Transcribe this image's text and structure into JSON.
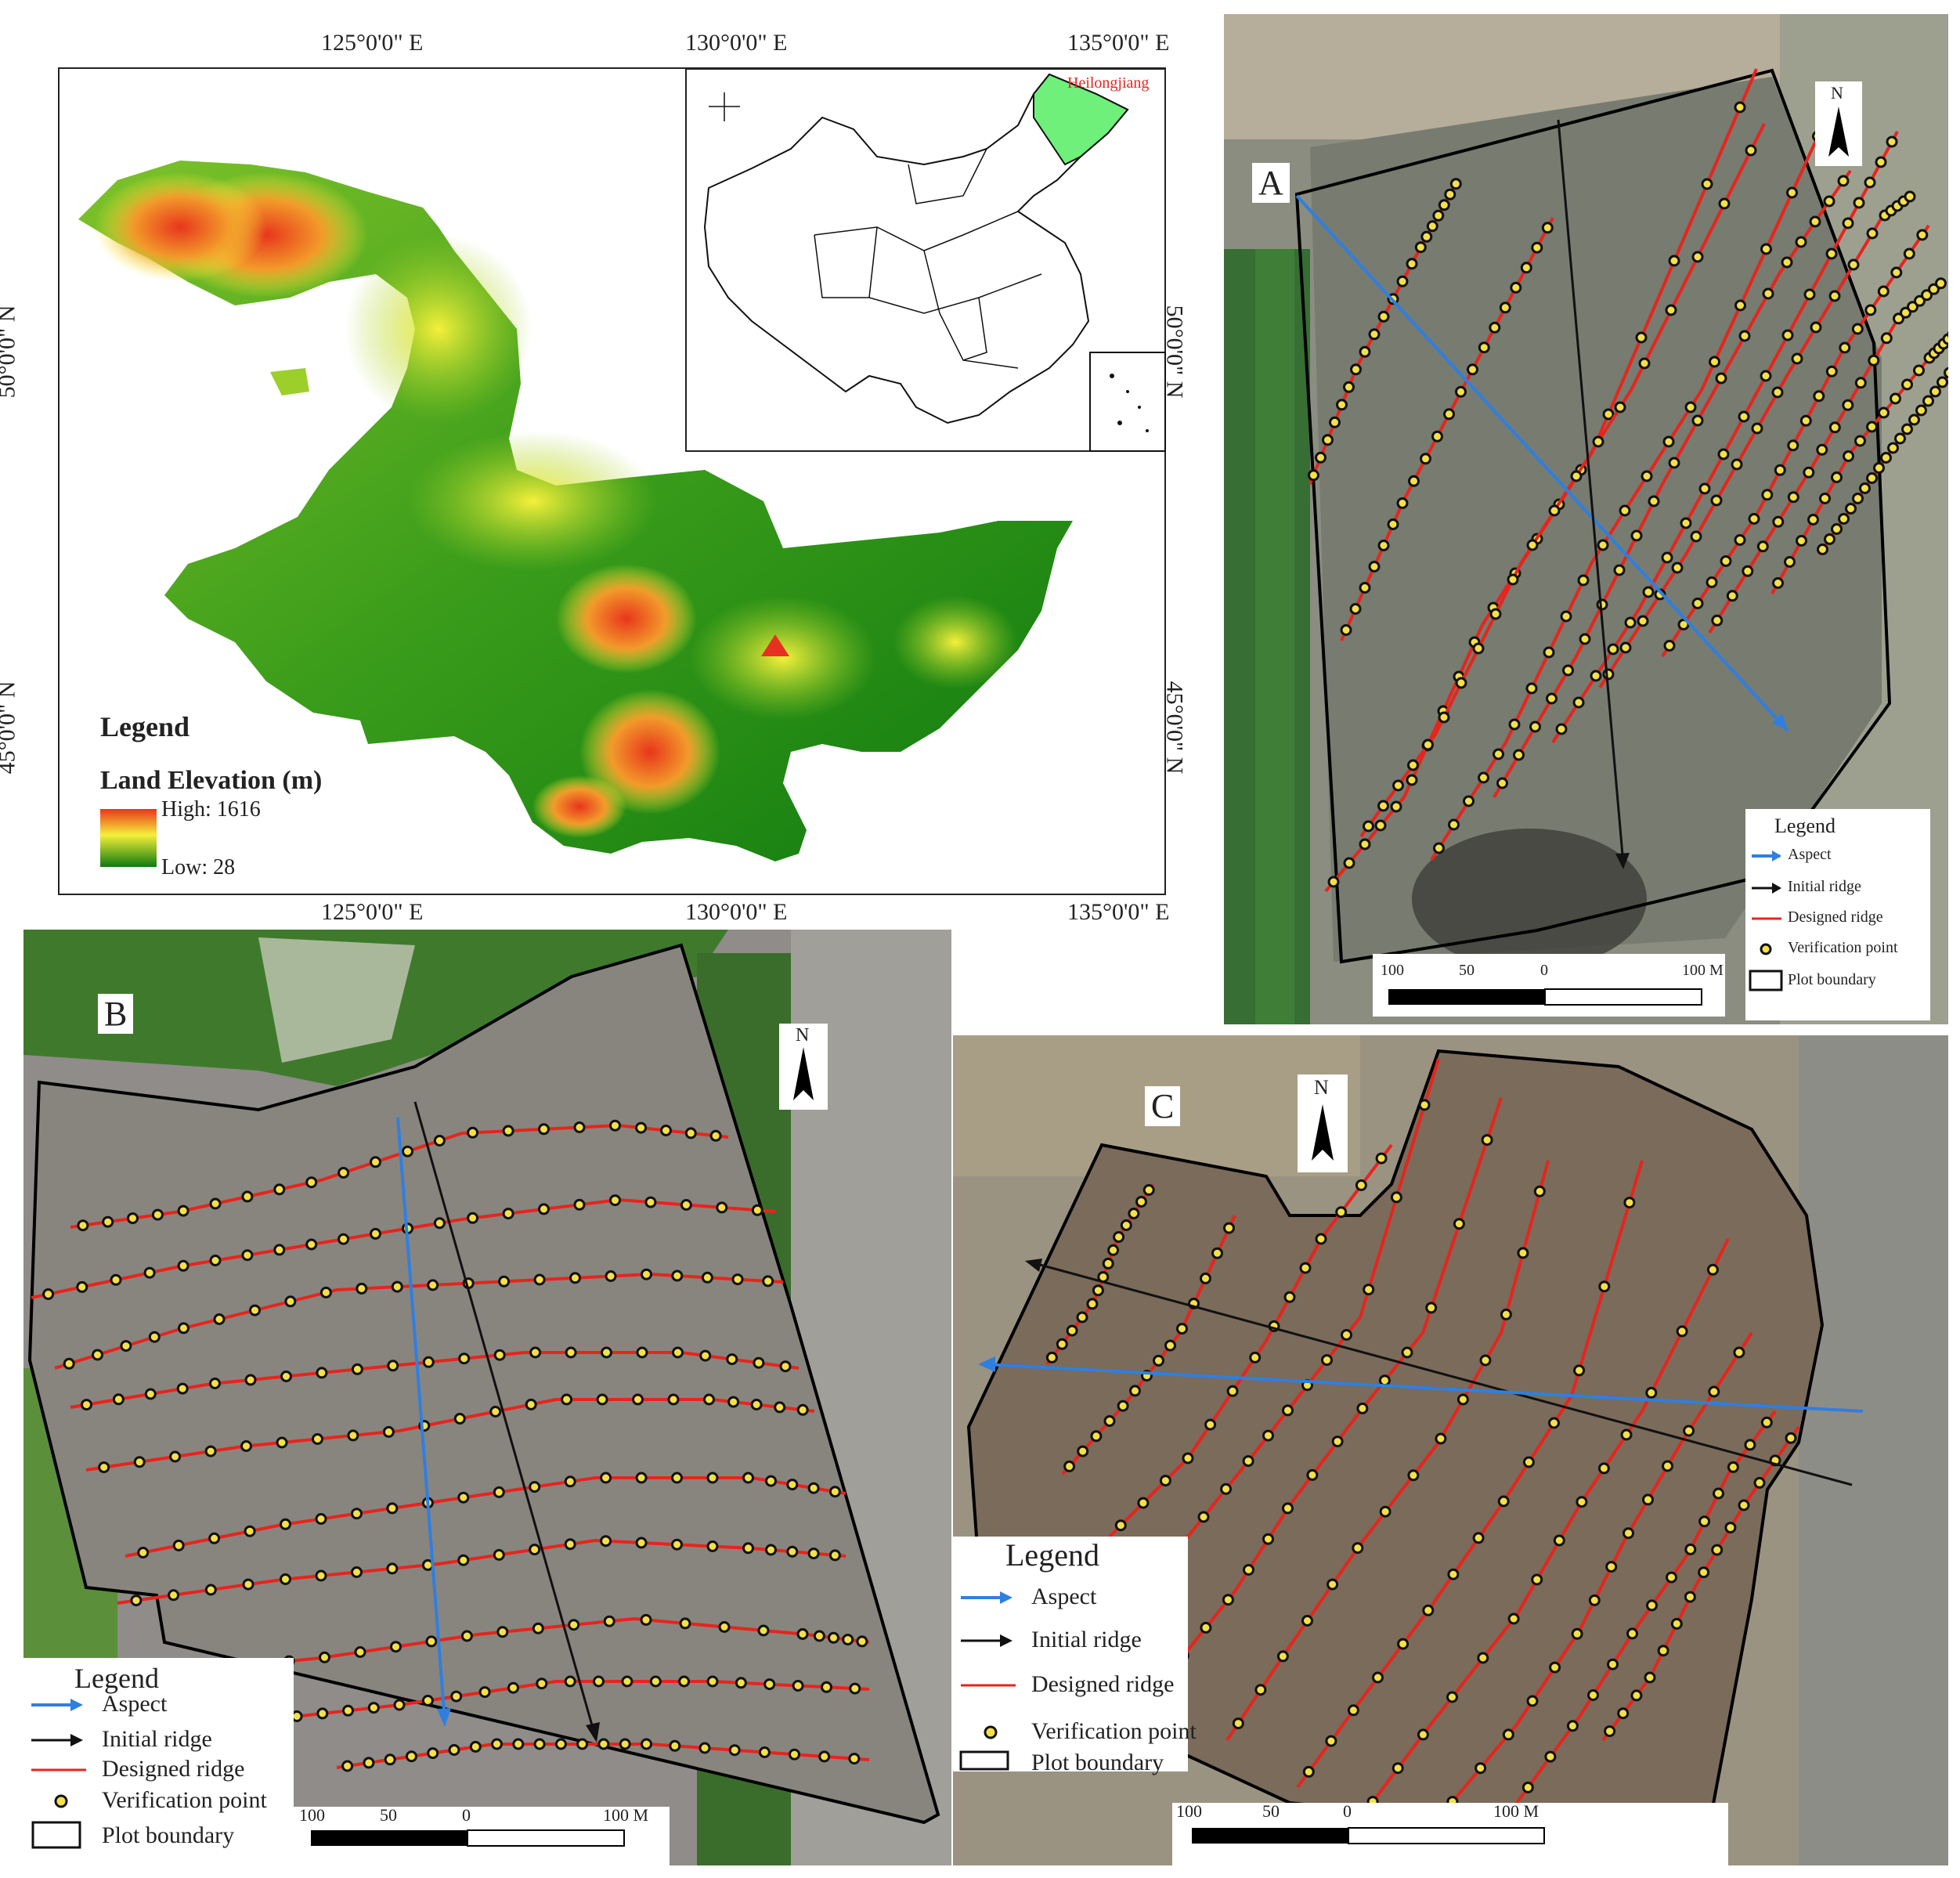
{
  "main_map": {
    "top_lon_labels": [
      "125°0'0\" E",
      "130°0'0\" E",
      "135°0'0\" E"
    ],
    "bottom_lon_labels": [
      "125°0'0\" E",
      "130°0'0\" E",
      "135°0'0\" E"
    ],
    "left_lat_labels": [
      "50°0'0\" N",
      "45°0'0\" N"
    ],
    "right_lat_labels": [
      "50°0'0\" N",
      "45°0'0\" N"
    ],
    "inset_label": "Heilongjiang",
    "legend_title": "Legend",
    "legend_subtitle": "Land Elevation (m)",
    "legend_high": "High: 1616",
    "legend_low": "Low: 28",
    "colors": {
      "high": "#e8361c",
      "mid": "#f5f03a",
      "low": "#0f7a0f",
      "inset_fill": "#6ef07a",
      "site_marker": "#e83020"
    }
  },
  "plot_a": {
    "letter": "A",
    "north": "N",
    "legend_title": "Legend",
    "legend_items": [
      "Aspect",
      "Initial ridge",
      "Designed ridge",
      "Verification point",
      "Plot boundary"
    ],
    "scale_labels": [
      "100",
      "50",
      "0",
      "100 M"
    ]
  },
  "plot_b": {
    "letter": "B",
    "north": "N",
    "legend_title": "Legend",
    "legend_items": [
      "Aspect",
      "Initial ridge",
      "Designed ridge",
      "Verification point",
      "Plot boundary"
    ],
    "scale_labels": [
      "100",
      "50",
      "0",
      "100 M"
    ]
  },
  "plot_c": {
    "letter": "C",
    "north": "N",
    "legend_title": "Legend",
    "legend_items": [
      "Aspect",
      "Initial ridge",
      "Designed ridge",
      "Verification point",
      "Plot boundary"
    ],
    "scale_labels": [
      "100",
      "50",
      "0",
      "100 M"
    ]
  },
  "symbology": {
    "aspect": "#2f7fe0",
    "initial_ridge": "#111111",
    "designed_ridge": "#e8241c",
    "verification_fill": "#f5e04a"
  }
}
